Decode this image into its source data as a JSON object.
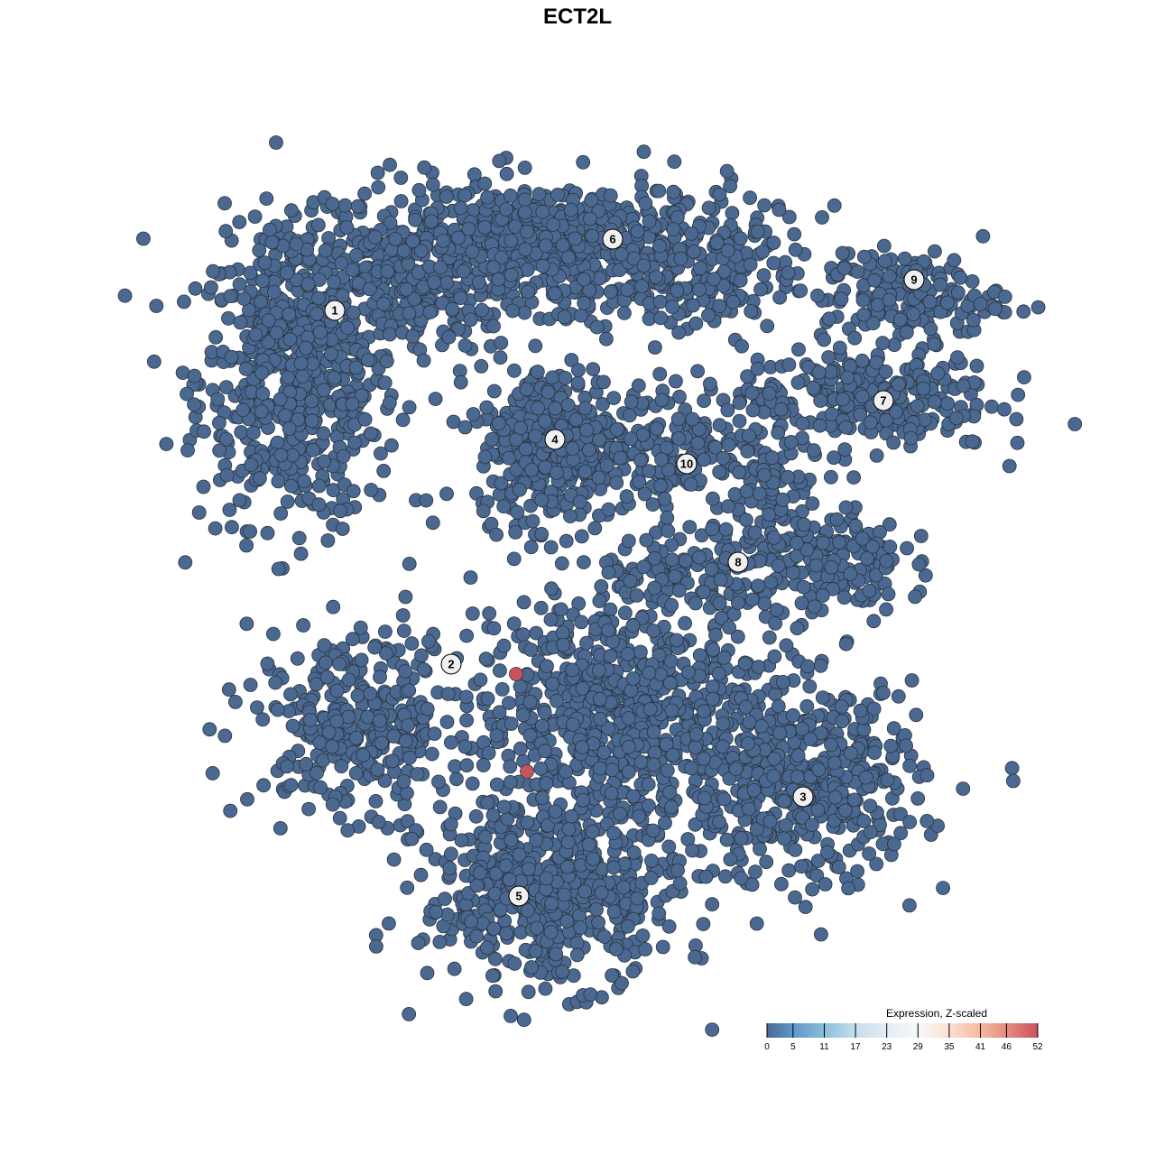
{
  "chart_data": {
    "type": "scatter",
    "title": "ECT2L",
    "xlabel": "",
    "ylabel": "",
    "axes_visible": false,
    "grid": false,
    "base_point_color": "#4a6890",
    "point_stroke_color": "#2a3440",
    "clusters": [
      {
        "label": "1",
        "label_pos": [
          -26.9,
          29.6
        ],
        "blobs": [
          {
            "center": [
              -31,
              22
            ],
            "sd": [
              5.5,
              8
            ],
            "n": 600
          },
          {
            "center": [
              -20,
              33
            ],
            "sd": [
              7,
              4
            ],
            "n": 250
          }
        ]
      },
      {
        "label": "6",
        "label_pos": [
          3.9,
          37.5
        ],
        "blobs": [
          {
            "center": [
              -3,
              37
            ],
            "sd": [
              12,
              3.5
            ],
            "n": 650
          },
          {
            "center": [
              12,
              32
            ],
            "sd": [
              6,
              3
            ],
            "n": 120
          }
        ]
      },
      {
        "label": "4",
        "label_pos": [
          -2.5,
          15.3
        ],
        "blobs": [
          {
            "center": [
              -2.5,
              15
            ],
            "sd": [
              4.3,
              4.3
            ],
            "n": 380
          }
        ]
      },
      {
        "label": "9",
        "label_pos": [
          37.3,
          33.0
        ],
        "blobs": [
          {
            "center": [
              37,
              31
            ],
            "sd": [
              5,
              2.5
            ],
            "n": 160
          }
        ]
      },
      {
        "label": "7",
        "label_pos": [
          33.9,
          19.6
        ],
        "blobs": [
          {
            "center": [
              32,
              20
            ],
            "sd": [
              7,
              3
            ],
            "n": 260
          }
        ]
      },
      {
        "label": "10",
        "label_pos": [
          12.1,
          12.6
        ],
        "blobs": [
          {
            "center": [
              11,
              15
            ],
            "sd": [
              3.5,
              3.5
            ],
            "n": 120
          }
        ]
      },
      {
        "label": "8",
        "label_pos": [
          17.8,
          1.7
        ],
        "blobs": [
          {
            "center": [
              27,
              2
            ],
            "sd": [
              4.5,
              3
            ],
            "n": 180
          },
          {
            "center": [
              21,
              10
            ],
            "sd": [
              3,
              5
            ],
            "n": 110
          },
          {
            "center": [
              12,
              0
            ],
            "sd": [
              5,
              2
            ],
            "n": 90
          }
        ]
      },
      {
        "label": "2",
        "label_pos": [
          -14.0,
          -9.6
        ],
        "blobs": [
          {
            "center": [
              -24,
              -16
            ],
            "sd": [
              6,
              5
            ],
            "n": 320
          }
        ]
      },
      {
        "label": "5",
        "label_pos": [
          -6.5,
          -35.3
        ],
        "blobs": [
          {
            "center": [
              -3,
              -35
            ],
            "sd": [
              7,
              5
            ],
            "n": 520
          },
          {
            "center": [
              5,
              -15
            ],
            "sd": [
              8,
              7
            ],
            "n": 750
          }
        ]
      },
      {
        "label": "3",
        "label_pos": [
          25.0,
          -24.3
        ],
        "blobs": [
          {
            "center": [
              25,
              -23
            ],
            "sd": [
              6.5,
              5.5
            ],
            "n": 460
          }
        ]
      }
    ],
    "highlighted_points": [
      {
        "x": -6.8,
        "y": -10.7,
        "value": 52,
        "color": "#c9525f"
      },
      {
        "x": -5.6,
        "y": -21.5,
        "value": 52,
        "color": "#c9525f"
      }
    ],
    "colorbar": {
      "title": "Expression, Z-scaled",
      "position": "bottom-right",
      "range": [
        0,
        52
      ],
      "ticks": [
        "0",
        "5",
        "11",
        "17",
        "23",
        "29",
        "35",
        "41",
        "46",
        "52"
      ],
      "tick_values": [
        0,
        5,
        11,
        17,
        23,
        29,
        35,
        41,
        46,
        52
      ],
      "colors": [
        "#4a6a94",
        "#5f96c8",
        "#8cbddb",
        "#c5dfed",
        "#e4edf3",
        "#f7f7f7",
        "#fbe1d3",
        "#f4b89f",
        "#e58c7f",
        "#c9525f"
      ]
    }
  }
}
